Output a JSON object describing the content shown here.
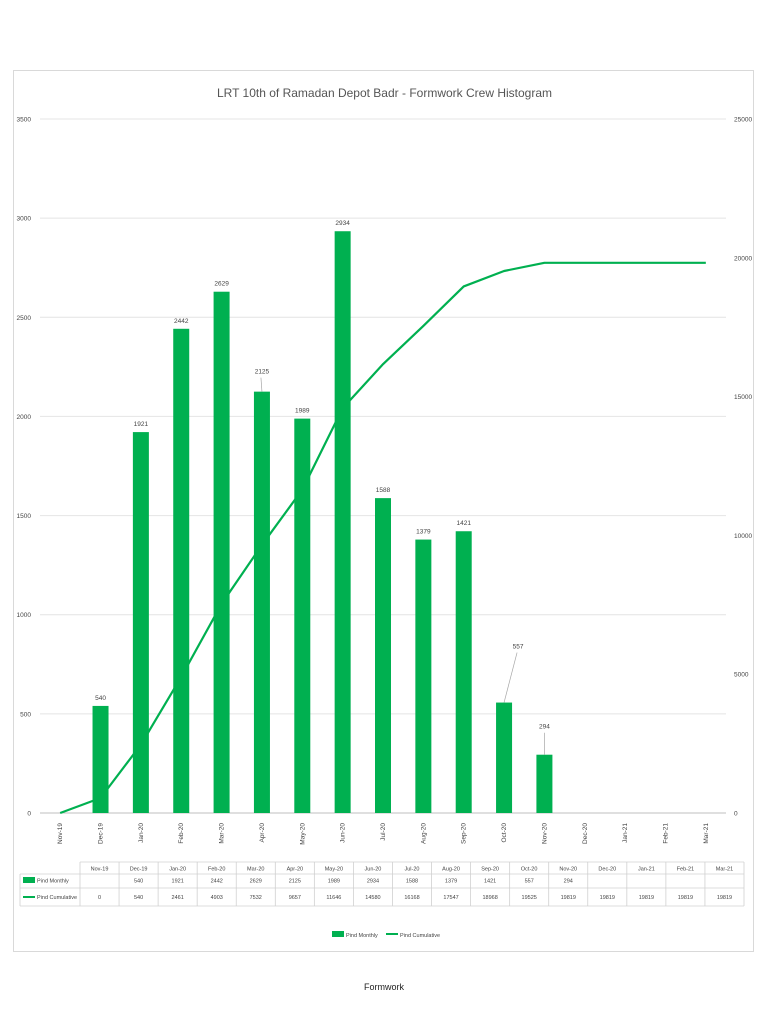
{
  "chart_data": {
    "type": "bar",
    "title": "LRT 10th of Ramadan Depot Badr - Formwork Crew Histogram",
    "categories": [
      "Nov-19",
      "Dec-19",
      "Jan-20",
      "Feb-20",
      "Mar-20",
      "Apr-20",
      "May-20",
      "Jun-20",
      "Jul-20",
      "Aug-20",
      "Sep-20",
      "Oct-20",
      "Nov-20",
      "Dec-20",
      "Jan-21",
      "Feb-21",
      "Mar-21"
    ],
    "table_categories": [
      "Nov-19",
      "Dec-19",
      "Jan-20",
      "Feb-20",
      "Mar-20",
      "Apr-20",
      "May-20",
      "Jun-20",
      "Jul-20",
      "Aug-20",
      "Sep-20",
      "Oct-20",
      "Nov-20",
      "Dec-20",
      "Jan-21",
      "Feb-21",
      "Mar-21"
    ],
    "series": [
      {
        "name": "Pind Monthly",
        "type": "bar",
        "axis": "left",
        "color": "#00b050",
        "values": [
          null,
          540,
          1921,
          2442,
          2629,
          2125,
          1989,
          2934,
          1588,
          1379,
          1421,
          557,
          294,
          null,
          null,
          null,
          null
        ]
      },
      {
        "name": "Pind Cumulative",
        "type": "line",
        "axis": "right",
        "color": "#00b050",
        "values": [
          0,
          540,
          2461,
          4903,
          7532,
          9657,
          11646,
          14580,
          16168,
          17547,
          18968,
          19525,
          19819,
          19819,
          19819,
          19819,
          19819
        ]
      }
    ],
    "y_left": {
      "ylim": [
        0,
        3500
      ],
      "ticks": [
        "0",
        "500",
        "1000",
        "1500",
        "2000",
        "2500",
        "3000",
        "3500"
      ]
    },
    "y_right": {
      "ylim": [
        0,
        25000
      ],
      "ticks": [
        "0",
        "5000",
        "10000",
        "15000",
        "20000",
        "25000"
      ]
    },
    "legend": {
      "placement": "bottom",
      "entries": [
        "Pind Monthly",
        "Pind Cumulative"
      ]
    },
    "grid": true
  },
  "footer": {
    "label": "Formwork"
  }
}
